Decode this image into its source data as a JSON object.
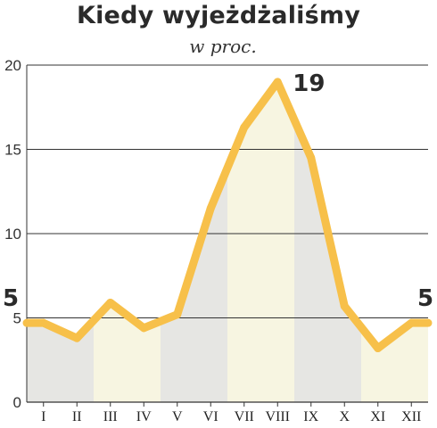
{
  "chart_data": {
    "type": "area",
    "title": "Kiedy wyjeżdżaliśmy",
    "subtitle": "w proc.",
    "categories": [
      "I",
      "II",
      "III",
      "IV",
      "V",
      "VI",
      "VII",
      "VIII",
      "IX",
      "X",
      "XI",
      "XII"
    ],
    "values": [
      4.7,
      3.8,
      5.9,
      4.4,
      5.2,
      11.5,
      16.3,
      19,
      14.5,
      5.7,
      3.2,
      4.7
    ],
    "y_ticks": [
      "0",
      "5",
      "10",
      "15",
      "20"
    ],
    "ylim": [
      0,
      20
    ],
    "grid": true,
    "data_labels": [
      {
        "index": 0,
        "text": "5"
      },
      {
        "index": 7,
        "text": "19"
      },
      {
        "index": 11,
        "text": "5"
      }
    ],
    "colors": {
      "line": "#f7c04a",
      "fill_gray": "#e6e6e3",
      "fill_cream": "#f7f5e1",
      "grid": "#333333"
    }
  }
}
